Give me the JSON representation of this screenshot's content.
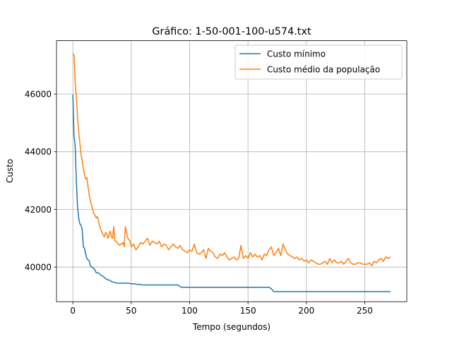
{
  "chart_data": {
    "type": "line",
    "title": "Gráfico: 1-50-001-100-u574.txt",
    "xlabel": "Tempo (segundos)",
    "ylabel": "Custo",
    "xlim": [
      -14,
      286
    ],
    "ylim": [
      38800,
      47850
    ],
    "xticks": [
      0,
      50,
      100,
      150,
      200,
      250
    ],
    "yticks": [
      40000,
      42000,
      44000,
      46000
    ],
    "grid": true,
    "legend_position": "upper-right",
    "colors": {
      "min": "#1f77b4",
      "avg": "#ff7f0e"
    },
    "series": [
      {
        "name": "Custo mínimo",
        "x": [
          0,
          1,
          2,
          3,
          4,
          5,
          6,
          7,
          8,
          9,
          10,
          11,
          12,
          13,
          14,
          15,
          16,
          17,
          18,
          19,
          20,
          22,
          24,
          26,
          28,
          30,
          32,
          33,
          35,
          37,
          39,
          42,
          45,
          48,
          50,
          53,
          55,
          58,
          60,
          65,
          70,
          75,
          80,
          85,
          90,
          93,
          95,
          100,
          110,
          120,
          130,
          140,
          150,
          160,
          168,
          170,
          172,
          175,
          180,
          190,
          200,
          220,
          240,
          260,
          272
        ],
        "values": [
          45980,
          44550,
          44200,
          43000,
          42100,
          41700,
          41500,
          41450,
          41300,
          40700,
          40650,
          40450,
          40300,
          40250,
          40220,
          40050,
          40000,
          39980,
          39950,
          39900,
          39800,
          39800,
          39720,
          39680,
          39600,
          39560,
          39540,
          39500,
          39480,
          39450,
          39440,
          39440,
          39440,
          39440,
          39420,
          39420,
          39400,
          39400,
          39380,
          39380,
          39380,
          39380,
          39380,
          39380,
          39380,
          39300,
          39300,
          39300,
          39300,
          39300,
          39300,
          39300,
          39300,
          39300,
          39300,
          39250,
          39150,
          39150,
          39150,
          39150,
          39150,
          39150,
          39150,
          39150,
          39150
        ]
      },
      {
        "name": "Custo médio da população",
        "x": [
          0,
          1,
          2,
          3,
          4,
          5,
          6,
          7,
          8,
          9,
          10,
          11,
          12,
          13,
          14,
          15,
          16,
          17,
          18,
          19,
          20,
          21,
          22,
          23,
          24,
          25,
          26,
          27,
          28,
          29,
          30,
          31,
          32,
          33,
          34,
          35,
          36,
          37,
          38,
          39,
          40,
          41,
          42,
          43,
          44,
          45,
          46,
          47,
          48,
          49,
          50,
          52,
          54,
          56,
          58,
          60,
          62,
          64,
          66,
          68,
          70,
          72,
          74,
          76,
          78,
          80,
          82,
          84,
          86,
          88,
          90,
          92,
          94,
          96,
          98,
          100,
          102,
          104,
          106,
          108,
          110,
          112,
          114,
          116,
          118,
          120,
          122,
          124,
          126,
          128,
          130,
          132,
          134,
          136,
          138,
          140,
          142,
          144,
          146,
          148,
          150,
          152,
          154,
          156,
          158,
          160,
          162,
          164,
          166,
          168,
          170,
          172,
          174,
          176,
          178,
          180,
          182,
          184,
          186,
          188,
          190,
          192,
          194,
          196,
          198,
          200,
          202,
          204,
          206,
          208,
          210,
          212,
          214,
          216,
          218,
          220,
          222,
          224,
          226,
          228,
          230,
          232,
          234,
          236,
          238,
          240,
          242,
          244,
          246,
          248,
          250,
          252,
          254,
          256,
          258,
          260,
          262,
          264,
          266,
          268,
          270,
          272
        ],
        "values": [
          47400,
          47350,
          46400,
          45900,
          45200,
          44700,
          44300,
          43900,
          43700,
          43400,
          43200,
          43050,
          43100,
          42800,
          42500,
          42300,
          42150,
          42000,
          41850,
          41800,
          41700,
          41750,
          41600,
          41400,
          41300,
          41200,
          41100,
          41050,
          41200,
          41150,
          41000,
          41100,
          41250,
          41050,
          41000,
          41400,
          40900,
          40900,
          40850,
          40800,
          40750,
          40800,
          40800,
          40850,
          40700,
          41400,
          41200,
          41000,
          40950,
          40900,
          40700,
          40800,
          40600,
          40700,
          40850,
          40800,
          40900,
          41000,
          40750,
          40900,
          40850,
          40800,
          40900,
          40700,
          40800,
          40750,
          40600,
          40700,
          40800,
          40700,
          40650,
          40750,
          40600,
          40550,
          40500,
          40600,
          40550,
          40800,
          40500,
          40450,
          40500,
          40600,
          40300,
          40650,
          40550,
          40500,
          40350,
          40300,
          40450,
          40400,
          40500,
          40350,
          40250,
          40300,
          40350,
          40250,
          40300,
          40750,
          40300,
          40400,
          40300,
          40500,
          40350,
          40450,
          40350,
          40400,
          40250,
          40450,
          40400,
          40600,
          40700,
          40400,
          40500,
          40650,
          40400,
          40800,
          40600,
          40450,
          40400,
          40350,
          40300,
          40350,
          40250,
          40300,
          40200,
          40250,
          40150,
          40250,
          40200,
          40150,
          40100,
          40100,
          40150,
          40200,
          40100,
          40300,
          40150,
          40250,
          40150,
          40150,
          40200,
          40100,
          40200,
          40300,
          40150,
          40100,
          40100,
          40150,
          40150,
          40100,
          40100,
          40100,
          40150,
          40050,
          40200,
          40150,
          40250,
          40300,
          40200,
          40350,
          40300,
          40350
        ]
      }
    ]
  }
}
